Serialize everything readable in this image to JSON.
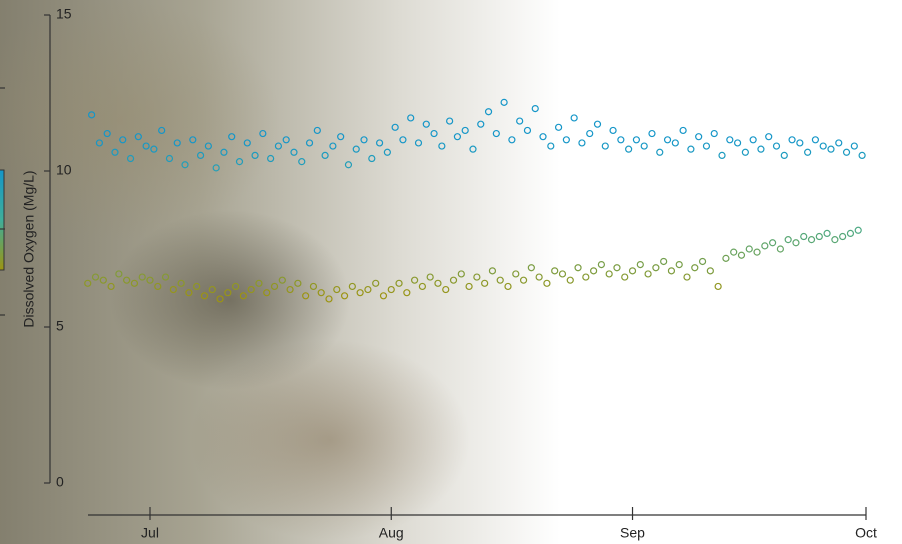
{
  "chart_data": {
    "type": "scatter",
    "y_label": "Dissolved Oxygen (Mg/L)",
    "xlim": [
      -9,
      92
    ],
    "xticks": [
      {
        "value": 0,
        "label": "Jul"
      },
      {
        "value": 31,
        "label": "Aug"
      },
      {
        "value": 62,
        "label": "Sep"
      },
      {
        "value": 92,
        "label": "Oct"
      }
    ],
    "ylim": [
      0,
      15
    ],
    "yticks": [
      0,
      5,
      10,
      15
    ],
    "colorscale": [
      {
        "value": 6,
        "color": "#9c9412"
      },
      {
        "value": 8.5,
        "color": "#3fae9a"
      },
      {
        "value": 11,
        "color": "#1596c8"
      }
    ],
    "x": [
      -8,
      -7,
      -6,
      -5,
      -4,
      -3,
      -2,
      -1,
      0,
      1,
      2,
      3,
      4,
      5,
      6,
      7,
      8,
      9,
      10,
      11,
      12,
      13,
      14,
      15,
      16,
      17,
      18,
      19,
      20,
      21,
      22,
      23,
      24,
      25,
      26,
      27,
      28,
      29,
      30,
      31,
      32,
      33,
      34,
      35,
      36,
      37,
      38,
      39,
      40,
      41,
      42,
      43,
      44,
      45,
      46,
      47,
      48,
      49,
      50,
      51,
      52,
      53,
      54,
      55,
      56,
      57,
      58,
      59,
      60,
      61,
      62,
      63,
      64,
      65,
      66,
      67,
      68,
      69,
      70,
      71,
      72,
      73,
      74,
      75,
      76,
      77,
      78,
      79,
      80,
      81,
      82,
      83,
      84,
      85,
      86,
      87,
      88,
      89,
      90,
      91,
      -7.5,
      -6.5,
      -5.5,
      -4.5,
      -3.5,
      -2.5,
      -1.5,
      -0.5,
      0.5,
      1.5,
      2.5,
      3.5,
      4.5,
      5.5,
      6.5,
      7.5,
      8.5,
      9.5,
      10.5,
      11.5,
      12.5,
      13.5,
      14.5,
      15.5,
      16.5,
      17.5,
      18.5,
      19.5,
      20.5,
      21.5,
      22.5,
      23.5,
      24.5,
      25.5,
      26.5,
      27.5,
      28.5,
      29.5,
      30.5,
      31.5,
      32.5,
      33.5,
      34.5,
      35.5,
      36.5,
      37.5,
      38.5,
      39.5,
      40.5,
      41.5,
      42.5,
      43.5,
      44.5,
      45.5,
      46.5,
      47.5,
      48.5,
      49.5,
      50.5,
      51.5,
      52.5,
      53.5,
      54.5,
      55.5,
      56.5,
      57.5,
      58.5,
      59.5,
      60.5,
      61.5,
      62.5,
      63.5,
      64.5,
      65.5,
      66.5,
      67.5,
      68.5,
      69.5,
      70.5,
      71.5,
      72.5,
      73.5,
      74.5,
      75.5,
      76.5,
      77.5,
      78.5,
      79.5,
      80.5,
      81.5,
      82.5,
      83.5,
      84.5,
      85.5,
      86.5,
      87.5,
      88.5,
      89.5,
      90.5,
      91.5
    ],
    "y": [
      6.4,
      6.6,
      6.5,
      6.3,
      6.7,
      6.5,
      6.4,
      6.6,
      6.5,
      6.3,
      6.6,
      6.2,
      6.4,
      6.1,
      6.3,
      6.0,
      6.2,
      5.9,
      6.1,
      6.3,
      6.0,
      6.2,
      6.4,
      6.1,
      6.3,
      6.5,
      6.2,
      6.4,
      6.0,
      6.3,
      6.1,
      5.9,
      6.2,
      6.0,
      6.3,
      6.1,
      6.2,
      6.4,
      6.0,
      6.2,
      6.4,
      6.1,
      6.5,
      6.3,
      6.6,
      6.4,
      6.2,
      6.5,
      6.7,
      6.3,
      6.6,
      6.4,
      6.8,
      6.5,
      6.3,
      6.7,
      6.5,
      6.9,
      6.6,
      6.4,
      6.8,
      6.7,
      6.5,
      6.9,
      6.6,
      6.8,
      7.0,
      6.7,
      6.9,
      6.6,
      6.8,
      7.0,
      6.7,
      6.9,
      7.1,
      6.8,
      7.0,
      6.6,
      6.9,
      7.1,
      6.8,
      6.3,
      7.2,
      7.4,
      7.3,
      7.5,
      7.4,
      7.6,
      7.7,
      7.5,
      7.8,
      7.7,
      7.9,
      7.8,
      7.9,
      8.0,
      7.8,
      7.9,
      8.0,
      8.1,
      11.8,
      10.9,
      11.2,
      10.6,
      11.0,
      10.4,
      11.1,
      10.8,
      10.7,
      11.3,
      10.4,
      10.9,
      10.2,
      11.0,
      10.5,
      10.8,
      10.1,
      10.6,
      11.1,
      10.3,
      10.9,
      10.5,
      11.2,
      10.4,
      10.8,
      11.0,
      10.6,
      10.3,
      10.9,
      11.3,
      10.5,
      10.8,
      11.1,
      10.2,
      10.7,
      11.0,
      10.4,
      10.9,
      10.6,
      11.4,
      11.0,
      11.7,
      10.9,
      11.5,
      11.2,
      10.8,
      11.6,
      11.1,
      11.3,
      10.7,
      11.5,
      11.9,
      11.2,
      12.2,
      11.0,
      11.6,
      11.3,
      12.0,
      11.1,
      10.8,
      11.4,
      11.0,
      11.7,
      10.9,
      11.2,
      11.5,
      10.8,
      11.3,
      11.0,
      10.7,
      11.0,
      10.8,
      11.2,
      10.6,
      11.0,
      10.9,
      11.3,
      10.7,
      11.1,
      10.8,
      11.2,
      10.5,
      11.0,
      10.9,
      10.6,
      11.0,
      10.7,
      11.1,
      10.8,
      10.5,
      11.0,
      10.9,
      10.6,
      11.0,
      10.8,
      10.7,
      10.9,
      10.6,
      10.8,
      10.5
    ]
  }
}
